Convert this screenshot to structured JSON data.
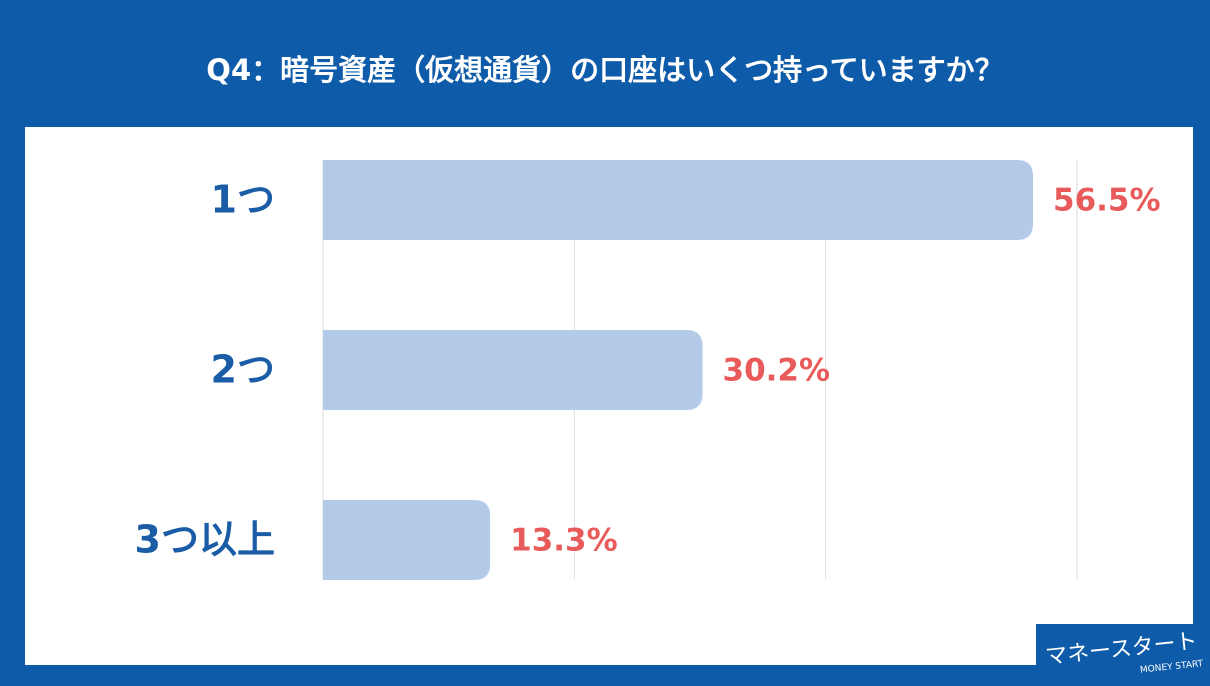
{
  "chart_data": {
    "type": "bar",
    "orientation": "horizontal",
    "title": "Q4：暗号資産（仮想通貨）の口座はいくつ持っていますか？",
    "categories": [
      "1つ",
      "2つ",
      "3つ以上"
    ],
    "values": [
      56.5,
      30.2,
      13.3
    ],
    "value_labels": [
      "56.5%",
      "30.2%",
      "13.3%"
    ],
    "color": "#b3cae8",
    "xlim": [
      0,
      60
    ],
    "xticks": [
      0,
      20,
      40,
      60
    ],
    "grid": true
  },
  "logo": {
    "text": "マネースタート",
    "subtext": "MONEY START"
  }
}
